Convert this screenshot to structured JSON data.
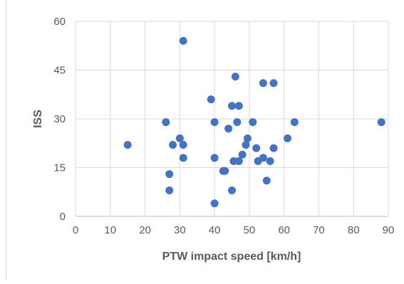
{
  "chart_data": {
    "type": "scatter",
    "title": "",
    "xlabel": "PTW impact speed [km/h]",
    "ylabel": "ISS",
    "xlim": [
      0,
      90
    ],
    "ylim": [
      0,
      60
    ],
    "x_ticks": [
      0,
      10,
      20,
      30,
      40,
      50,
      60,
      70,
      80,
      90
    ],
    "y_ticks": [
      0,
      15,
      30,
      45,
      60
    ],
    "grid": true,
    "legend": "none",
    "marker_color": "#4472c4",
    "grid_color": "#d9d9d9",
    "text_color": "#595959",
    "points": [
      {
        "x": 15,
        "y": 22
      },
      {
        "x": 26,
        "y": 29
      },
      {
        "x": 27,
        "y": 13
      },
      {
        "x": 27,
        "y": 8
      },
      {
        "x": 28,
        "y": 22
      },
      {
        "x": 30,
        "y": 24
      },
      {
        "x": 31,
        "y": 22
      },
      {
        "x": 31,
        "y": 18
      },
      {
        "x": 31,
        "y": 54
      },
      {
        "x": 39,
        "y": 36
      },
      {
        "x": 40,
        "y": 29
      },
      {
        "x": 40,
        "y": 18
      },
      {
        "x": 40,
        "y": 4
      },
      {
        "x": 42.5,
        "y": 14
      },
      {
        "x": 43,
        "y": 14
      },
      {
        "x": 44,
        "y": 27
      },
      {
        "x": 45,
        "y": 34
      },
      {
        "x": 45,
        "y": 8
      },
      {
        "x": 45.5,
        "y": 17
      },
      {
        "x": 46,
        "y": 43
      },
      {
        "x": 46.5,
        "y": 29
      },
      {
        "x": 47,
        "y": 34
      },
      {
        "x": 47,
        "y": 17
      },
      {
        "x": 48,
        "y": 19
      },
      {
        "x": 49,
        "y": 22
      },
      {
        "x": 49.5,
        "y": 24
      },
      {
        "x": 51,
        "y": 29
      },
      {
        "x": 52,
        "y": 21
      },
      {
        "x": 52.5,
        "y": 17
      },
      {
        "x": 54,
        "y": 41
      },
      {
        "x": 54,
        "y": 18
      },
      {
        "x": 55,
        "y": 11
      },
      {
        "x": 56,
        "y": 17
      },
      {
        "x": 57,
        "y": 41
      },
      {
        "x": 57,
        "y": 21
      },
      {
        "x": 61,
        "y": 24
      },
      {
        "x": 63,
        "y": 29
      },
      {
        "x": 88,
        "y": 29
      }
    ]
  }
}
